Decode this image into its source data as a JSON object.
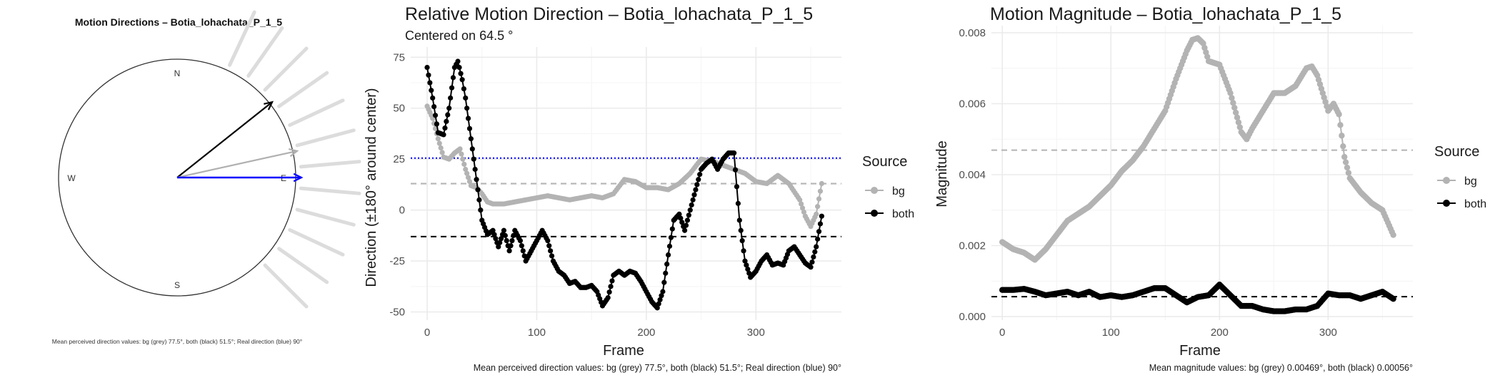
{
  "chart_data": [
    {
      "type": "radial",
      "title": "Motion Directions – Botia_lohachata_P_1_5",
      "compass": [
        "N",
        "E",
        "S",
        "W"
      ],
      "arrows": [
        {
          "name": "both",
          "color": "#000000",
          "angle_deg": 51.5
        },
        {
          "name": "bg",
          "color": "#b0b0b0",
          "angle_deg": 77.5
        },
        {
          "name": "real",
          "color": "#0000ff",
          "angle_deg": 90
        }
      ],
      "caption": "Mean perceived direction values: bg (grey) 77.5°, both (black) 51.5°; Real direction (blue) 90°"
    },
    {
      "type": "line",
      "title": "Relative Motion Direction – Botia_lohachata_P_1_5",
      "subtitle": "Centered on  64.5 °",
      "xlabel": "Frame",
      "ylabel": "Direction (±180° around center)",
      "xlim": [
        -15,
        378
      ],
      "ylim": [
        -54,
        80
      ],
      "xticks": [
        0,
        100,
        200,
        300
      ],
      "yticks": [
        -50,
        -25,
        0,
        25,
        50,
        75
      ],
      "grid": true,
      "legend": {
        "title": "Source",
        "placement": "right",
        "entries": [
          "bg",
          "both"
        ]
      },
      "series": [
        {
          "name": "bg",
          "color": "#b3b3b3",
          "x": [
            0,
            5,
            10,
            15,
            20,
            25,
            30,
            35,
            40,
            45,
            50,
            55,
            60,
            70,
            80,
            90,
            100,
            110,
            120,
            130,
            140,
            150,
            160,
            170,
            180,
            190,
            200,
            210,
            220,
            230,
            240,
            250,
            260,
            270,
            280,
            290,
            300,
            310,
            320,
            330,
            340,
            345,
            350,
            355,
            360
          ],
          "y": [
            51,
            45,
            35,
            26,
            25,
            28,
            30,
            20,
            12,
            11,
            8,
            4,
            3,
            3,
            4,
            5,
            6,
            7,
            6,
            5,
            6,
            7,
            6,
            8,
            15,
            14,
            11,
            11,
            10,
            13,
            18,
            25,
            24,
            22,
            20,
            18,
            14,
            13,
            17,
            13,
            5,
            -3,
            -8,
            -2,
            13
          ]
        },
        {
          "name": "both",
          "color": "#000000",
          "x": [
            0,
            5,
            10,
            15,
            20,
            25,
            28,
            32,
            35,
            40,
            45,
            50,
            55,
            60,
            65,
            70,
            75,
            80,
            85,
            90,
            95,
            100,
            105,
            110,
            115,
            120,
            125,
            130,
            135,
            140,
            145,
            150,
            155,
            160,
            165,
            170,
            175,
            180,
            185,
            190,
            195,
            200,
            205,
            210,
            215,
            220,
            225,
            230,
            235,
            240,
            245,
            250,
            255,
            260,
            265,
            270,
            275,
            280,
            285,
            290,
            295,
            300,
            305,
            310,
            315,
            320,
            325,
            330,
            335,
            340,
            345,
            350,
            355,
            360
          ],
          "y": [
            70,
            55,
            38,
            37,
            50,
            70,
            73,
            64,
            55,
            35,
            15,
            -5,
            -12,
            -10,
            -18,
            -10,
            -20,
            -10,
            -15,
            -25,
            -20,
            -15,
            -10,
            -15,
            -25,
            -30,
            -32,
            -36,
            -35,
            -38,
            -38,
            -37,
            -40,
            -47,
            -43,
            -32,
            -30,
            -32,
            -30,
            -31,
            -35,
            -40,
            -45,
            -48,
            -40,
            -22,
            -5,
            -2,
            -10,
            0,
            10,
            20,
            23,
            25,
            20,
            25,
            28,
            28,
            -5,
            -25,
            -33,
            -30,
            -25,
            -22,
            -27,
            -26,
            -27,
            -20,
            -18,
            -22,
            -26,
            -28,
            -18,
            -3
          ]
        }
      ],
      "hlines": [
        {
          "y": 25.5,
          "color": "#0000ff",
          "style": "dotted"
        },
        {
          "y": 13,
          "color": "#b3b3b3",
          "style": "dashed"
        },
        {
          "y": -13,
          "color": "#000000",
          "style": "dashed"
        }
      ],
      "caption": "Mean perceived direction values: bg (grey) 77.5°, both (black) 51.5°; Real direction (blue) 90°"
    },
    {
      "type": "line",
      "title": "Motion Magnitude – Botia_lohachata_P_1_5",
      "xlabel": "Frame",
      "ylabel": "Magnitude",
      "xlim": [
        -10,
        378
      ],
      "ylim": [
        -0.0001,
        0.0082
      ],
      "xticks": [
        0,
        100,
        200,
        300
      ],
      "yticks": [
        0,
        0.002,
        0.004,
        0.006,
        0.008
      ],
      "ytick_labels": [
        "0.000",
        "0.002",
        "0.004",
        "0.006",
        "0.008"
      ],
      "grid": true,
      "legend": {
        "title": "Source",
        "placement": "right",
        "entries": [
          "bg",
          "both"
        ]
      },
      "series": [
        {
          "name": "bg",
          "color": "#b3b3b3",
          "x": [
            0,
            10,
            20,
            30,
            40,
            50,
            60,
            70,
            80,
            90,
            100,
            110,
            120,
            130,
            140,
            150,
            160,
            170,
            175,
            180,
            185,
            190,
            200,
            210,
            220,
            225,
            230,
            240,
            250,
            260,
            270,
            280,
            285,
            290,
            300,
            305,
            310,
            315,
            320,
            330,
            340,
            350,
            360
          ],
          "y": [
            0.0021,
            0.0019,
            0.0018,
            0.0016,
            0.0019,
            0.0023,
            0.0027,
            0.0029,
            0.0031,
            0.0034,
            0.0037,
            0.0041,
            0.0044,
            0.0048,
            0.0053,
            0.0058,
            0.0067,
            0.0075,
            0.0078,
            0.00785,
            0.0077,
            0.0072,
            0.0071,
            0.0063,
            0.0052,
            0.005,
            0.0053,
            0.0058,
            0.0063,
            0.0063,
            0.0065,
            0.007,
            0.00705,
            0.0068,
            0.0058,
            0.006,
            0.0057,
            0.0045,
            0.0039,
            0.0035,
            0.0032,
            0.003,
            0.0023
          ]
        },
        {
          "name": "both",
          "color": "#000000",
          "x": [
            0,
            10,
            20,
            30,
            40,
            50,
            60,
            70,
            80,
            90,
            100,
            110,
            120,
            130,
            140,
            150,
            160,
            170,
            180,
            190,
            200,
            210,
            220,
            230,
            240,
            250,
            260,
            270,
            280,
            290,
            300,
            310,
            320,
            330,
            340,
            350,
            360
          ],
          "y": [
            0.00075,
            0.00075,
            0.00078,
            0.0007,
            0.0006,
            0.00065,
            0.0007,
            0.0006,
            0.0007,
            0.00055,
            0.0006,
            0.00055,
            0.0006,
            0.0007,
            0.0008,
            0.0008,
            0.0006,
            0.0004,
            0.00055,
            0.0006,
            0.0009,
            0.0006,
            0.0003,
            0.0003,
            0.0002,
            0.00015,
            0.00015,
            0.0002,
            0.0002,
            0.0003,
            0.00065,
            0.0006,
            0.0006,
            0.0005,
            0.0006,
            0.0007,
            0.0005
          ]
        }
      ],
      "hlines": [
        {
          "y": 0.00469,
          "color": "#b3b3b3",
          "style": "dashed"
        },
        {
          "y": 0.00056,
          "color": "#000000",
          "style": "dashed"
        }
      ],
      "caption": "Mean magnitude values: bg (grey) 0.00469°, both (black) 0.00056°"
    }
  ]
}
